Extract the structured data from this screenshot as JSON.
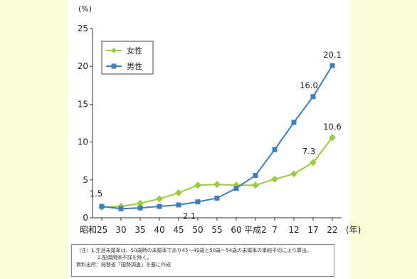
{
  "chart_data": {
    "type": "line",
    "unit_label": "(%)",
    "x_unit_label": "(年)",
    "categories": [
      "昭和25",
      "30",
      "35",
      "40",
      "45",
      "50",
      "55",
      "60",
      "平成2",
      "7",
      "12",
      "17",
      "22"
    ],
    "series": [
      {
        "name": "女性",
        "color": "#9ccc3d",
        "marker": "diamond",
        "values": [
          1.4,
          1.5,
          1.9,
          2.5,
          3.3,
          4.3,
          4.4,
          4.3,
          4.3,
          5.1,
          5.8,
          7.3,
          10.6
        ]
      },
      {
        "name": "男性",
        "color": "#3d7ebf",
        "marker": "square",
        "values": [
          1.5,
          1.2,
          1.3,
          1.5,
          1.7,
          2.1,
          2.6,
          3.9,
          5.6,
          9.0,
          12.6,
          16.0,
          20.1
        ]
      }
    ],
    "data_labels": [
      {
        "text": "1.5",
        "series": 1,
        "index": 0
      },
      {
        "text": "2.1",
        "series": 1,
        "index": 5
      },
      {
        "text": "7.3",
        "series": 0,
        "index": 11
      },
      {
        "text": "10.6",
        "series": 0,
        "index": 12
      },
      {
        "text": "16.0",
        "series": 1,
        "index": 11
      },
      {
        "text": "20.1",
        "series": 1,
        "index": 12
      }
    ],
    "yticks": [
      0,
      5,
      10,
      15,
      20,
      25
    ],
    "ylim": [
      0,
      25
    ],
    "grid": false,
    "legend_position": "top-left"
  },
  "note": {
    "lines": [
      "（注）1.生涯未婚率は、50歳時の未婚率であり45～49歳と50歳～54歳の未婚率の単純平均により算出。",
      "2.配偶関係不詳を除く。",
      "資料出所：総務省「国勢調査」を基に作成"
    ]
  }
}
